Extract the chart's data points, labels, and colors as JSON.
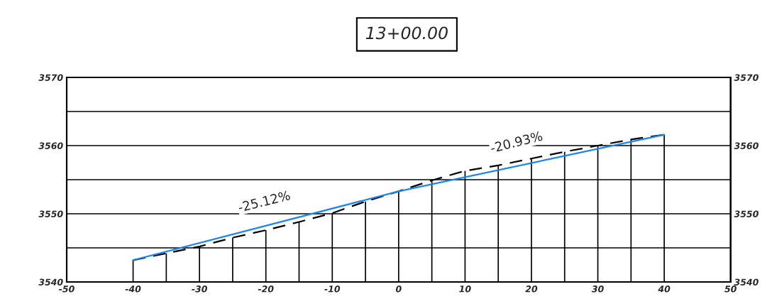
{
  "chart_data": {
    "type": "line",
    "title": "13+00.00",
    "x": [
      -40,
      -35,
      -30,
      -25,
      -20,
      -15,
      -10,
      -5,
      0,
      5,
      10,
      15,
      20,
      25,
      30,
      35,
      40
    ],
    "series": [
      {
        "type": "bar",
        "color": "#000000",
        "values": [
          3543.2,
          3544.2,
          3545.2,
          3546.5,
          3547.6,
          3548.8,
          3550.1,
          3551.8,
          3553.3,
          3554.9,
          3556.3,
          3557.1,
          3558.1,
          3559.1,
          3560.0,
          3560.9,
          3561.6
        ]
      },
      {
        "color": "#000000",
        "line_style": "dashed",
        "values": [
          3543.2,
          3544.2,
          3545.2,
          3546.5,
          3547.6,
          3548.8,
          3550.1,
          3551.8,
          3553.3,
          3554.9,
          3556.3,
          3557.1,
          3558.1,
          3559.1,
          3560.0,
          3560.9,
          3561.6
        ]
      },
      {
        "color": "#1a85f0",
        "line_style": "solid",
        "x": [
          -40,
          0,
          40
        ],
        "values": [
          3543.2,
          3553.3,
          3561.6
        ]
      }
    ],
    "xlim": [
      -50,
      50
    ],
    "xticks": [
      -50,
      -40,
      -30,
      -20,
      -10,
      0,
      10,
      20,
      30,
      40,
      50
    ],
    "ylim": [
      3540,
      3570
    ],
    "yticks": [
      3540,
      {
        "value": 3545,
        "label": null
      },
      3550,
      {
        "value": 3555,
        "label": null
      },
      3560,
      {
        "value": 3565,
        "label": null
      },
      3570
    ],
    "y2lim": [
      3540,
      3570
    ],
    "y2ticks": [
      3540,
      {
        "value": 3545,
        "label": null
      },
      3550,
      {
        "value": 3555,
        "label": null
      },
      3560,
      {
        "value": 3565,
        "label": null
      },
      3570
    ],
    "grid": "y",
    "annotations": [
      "-25.12%",
      "-20.93%"
    ]
  }
}
